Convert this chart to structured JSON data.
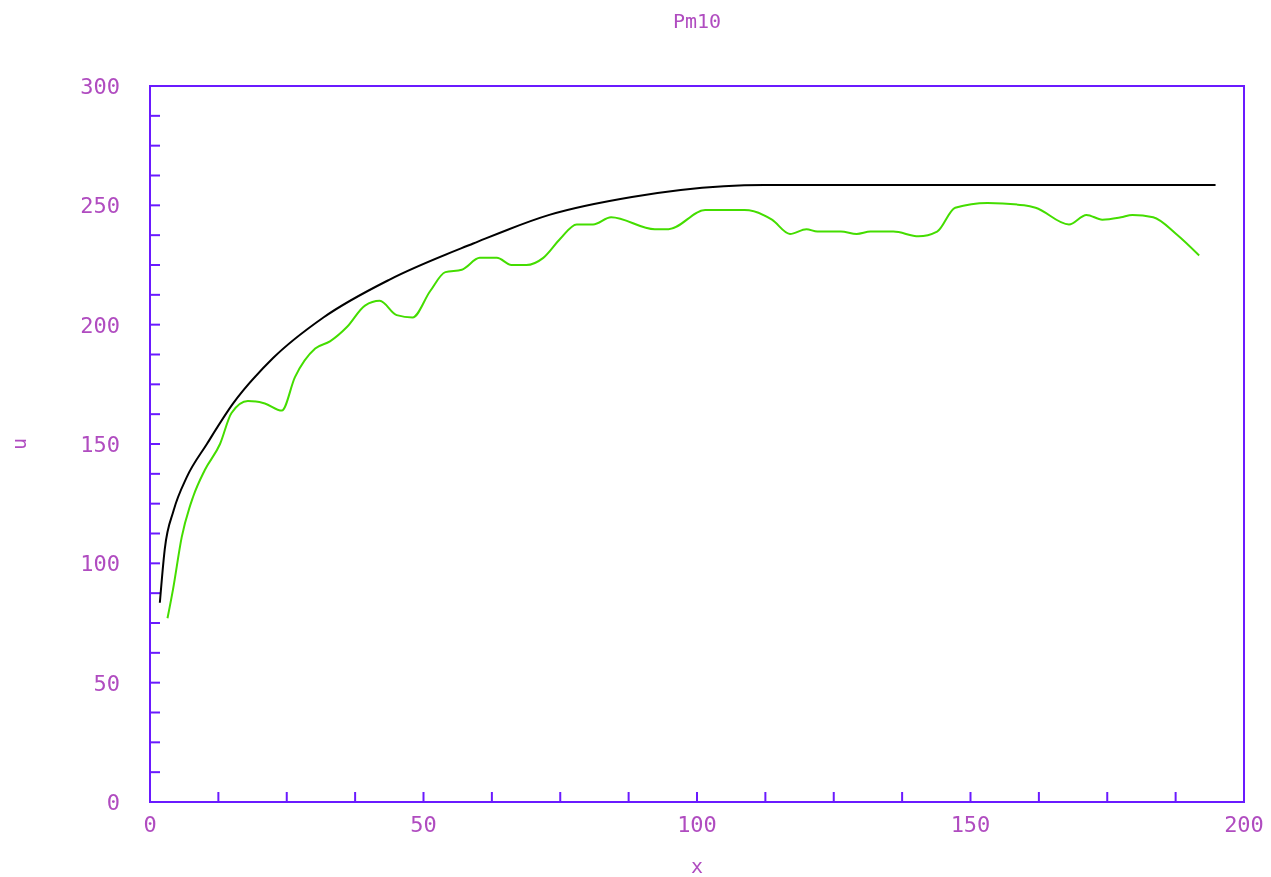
{
  "chart_data": {
    "type": "line",
    "title": "Pm10",
    "xlabel": "x",
    "ylabel": "u",
    "xlim": [
      0,
      200
    ],
    "ylim": [
      0,
      300
    ],
    "xticks": [
      0,
      {
        "value": 12.5,
        "label": null
      },
      {
        "value": 25,
        "label": null
      },
      {
        "value": 37.5,
        "label": null
      },
      50,
      {
        "value": 62.5,
        "label": null
      },
      {
        "value": 75,
        "label": null
      },
      {
        "value": 87.5,
        "label": null
      },
      100,
      {
        "value": 112.5,
        "label": null
      },
      {
        "value": 125,
        "label": null
      },
      {
        "value": 137.5,
        "label": null
      },
      150,
      {
        "value": 162.5,
        "label": null
      },
      {
        "value": 175,
        "label": null
      },
      {
        "value": 187.5,
        "label": null
      },
      200
    ],
    "yticks": [
      0,
      {
        "value": 12.5,
        "label": null
      },
      {
        "value": 25,
        "label": null
      },
      {
        "value": 37.5,
        "label": null
      },
      50,
      {
        "value": 62.5,
        "label": null
      },
      {
        "value": 75,
        "label": null
      },
      {
        "value": 87.5,
        "label": null
      },
      100,
      {
        "value": 112.5,
        "label": null
      },
      {
        "value": 125,
        "label": null
      },
      {
        "value": 137.5,
        "label": null
      },
      150,
      {
        "value": 162.5,
        "label": null
      },
      {
        "value": 175,
        "label": null
      },
      {
        "value": 187.5,
        "label": null
      },
      200,
      {
        "value": 212.5,
        "label": null
      },
      {
        "value": 225,
        "label": null
      },
      {
        "value": 237.5,
        "label": null
      },
      250,
      {
        "value": 262.5,
        "label": null
      },
      {
        "value": 275,
        "label": null
      },
      {
        "value": 287.5,
        "label": null
      },
      300
    ],
    "grid": false,
    "marker": "none",
    "line_style": "solid",
    "series": [
      {
        "color": "#44dd00",
        "x": [
          3.2,
          4.2,
          5.8,
          7.9,
          10,
          12.8,
          14.9,
          17.9,
          21,
          24.1,
          26.5,
          30.2,
          32.9,
          36,
          39.3,
          42,
          45.1,
          48,
          51.2,
          54,
          57,
          60.3,
          63.4,
          66.1,
          68.8,
          71.9,
          75,
          78,
          81,
          84.3,
          92.3,
          94.8,
          101.5,
          108.7,
          113.7,
          117,
          120,
          122,
          126.3,
          129.2,
          131.7,
          135.9,
          140.5,
          143.9,
          147.2,
          153.1,
          159.8,
          161.9,
          168,
          171.2,
          174.1,
          177.5,
          179.6,
          183.4,
          187.6,
          191.8
        ],
        "values": [
          77,
          89,
          111,
          128,
          139,
          150,
          163,
          168,
          167,
          164,
          178,
          190,
          193,
          199,
          208,
          210,
          204,
          203,
          214,
          222,
          223,
          228,
          228,
          225,
          225,
          228,
          236,
          242,
          242,
          245,
          240,
          240,
          248,
          248,
          244,
          238,
          240,
          239,
          239,
          238,
          239,
          239,
          237,
          239,
          249,
          251,
          250,
          249,
          242,
          246,
          244,
          245,
          246,
          245,
          238,
          229
        ]
      },
      {
        "color": "#000000",
        "x": [
          1.8,
          2.7,
          4.3,
          6.7,
          10.4,
          15.2,
          22.5,
          31.7,
          43.9,
          59.1,
          73,
          88.1,
          104.9,
          112.4,
          194.8
        ],
        "values": [
          83.5,
          106,
          122,
          136,
          150,
          167,
          186,
          203,
          219,
          234,
          246,
          253.5,
          258,
          258.5,
          258.5
        ]
      }
    ]
  }
}
